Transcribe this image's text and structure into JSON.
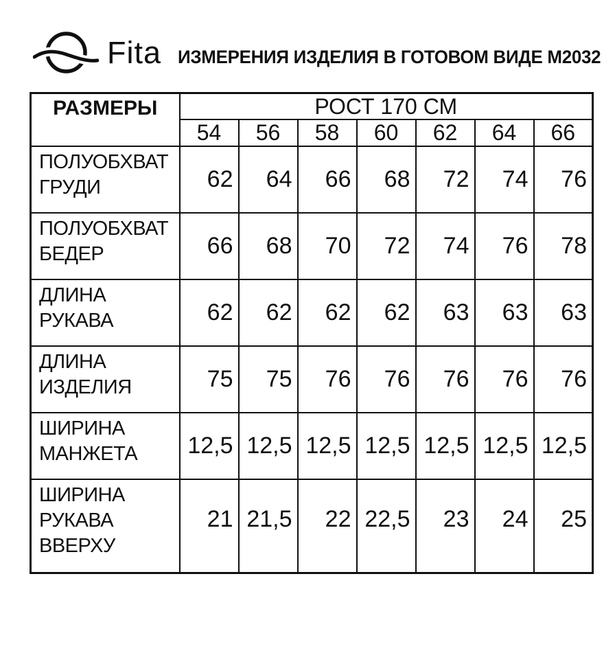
{
  "logo": {
    "brand": "Fita",
    "icon": "fita-globe-ribbon-icon"
  },
  "title": "ИЗМЕРЕНИЯ ИЗДЕЛИЯ В ГОТОВОМ ВИДЕ М2032",
  "table": {
    "corner_header": "РАЗМЕРЫ",
    "group_header": "РОСТ 170 СМ",
    "sizes": [
      "54",
      "56",
      "58",
      "60",
      "62",
      "64",
      "66"
    ],
    "rows": [
      {
        "label_lines": [
          "ПОЛУОБХВАТ",
          "ГРУДИ"
        ],
        "values": [
          "62",
          "64",
          "66",
          "68",
          "72",
          "74",
          "76"
        ]
      },
      {
        "label_lines": [
          "ПОЛУОБХВАТ",
          "БЕДЕР"
        ],
        "values": [
          "66",
          "68",
          "70",
          "72",
          "74",
          "76",
          "78"
        ]
      },
      {
        "label_lines": [
          "ДЛИНА",
          "РУКАВА"
        ],
        "values": [
          "62",
          "62",
          "62",
          "62",
          "63",
          "63",
          "63"
        ]
      },
      {
        "label_lines": [
          "ДЛИНА",
          "ИЗДЕЛИЯ"
        ],
        "values": [
          "75",
          "75",
          "76",
          "76",
          "76",
          "76",
          "76"
        ]
      },
      {
        "label_lines": [
          "ШИРИНА",
          "МАНЖЕТА"
        ],
        "values": [
          "12,5",
          "12,5",
          "12,5",
          "12,5",
          "12,5",
          "12,5",
          "12,5"
        ]
      },
      {
        "label_lines": [
          "ШИРИНА",
          "РУКАВА",
          "ВВЕРХУ"
        ],
        "values": [
          "21",
          "21,5",
          "22",
          "22,5",
          "23",
          "24",
          "25"
        ]
      }
    ]
  },
  "chart_data": {
    "type": "table",
    "title": "ИЗМЕРЕНИЯ ИЗДЕЛИЯ В ГОТОВОМ ВИДЕ М2032",
    "group_header": "РОСТ 170 СМ",
    "columns": [
      "54",
      "56",
      "58",
      "60",
      "62",
      "64",
      "66"
    ],
    "rows": [
      {
        "name": "ПОЛУОБХВАТ ГРУДИ",
        "values": [
          62,
          64,
          66,
          68,
          72,
          74,
          76
        ]
      },
      {
        "name": "ПОЛУОБХВАТ БЕДЕР",
        "values": [
          66,
          68,
          70,
          72,
          74,
          76,
          78
        ]
      },
      {
        "name": "ДЛИНА РУКАВА",
        "values": [
          62,
          62,
          62,
          62,
          63,
          63,
          63
        ]
      },
      {
        "name": "ДЛИНА ИЗДЕЛИЯ",
        "values": [
          75,
          75,
          76,
          76,
          76,
          76,
          76
        ]
      },
      {
        "name": "ШИРИНА МАНЖЕТА",
        "values": [
          12.5,
          12.5,
          12.5,
          12.5,
          12.5,
          12.5,
          12.5
        ]
      },
      {
        "name": "ШИРИНА РУКАВА ВВЕРХУ",
        "values": [
          21,
          21.5,
          22,
          22.5,
          23,
          24,
          25
        ]
      }
    ]
  },
  "colors": {
    "text": "#101010",
    "border": "#101010",
    "background": "#ffffff"
  }
}
